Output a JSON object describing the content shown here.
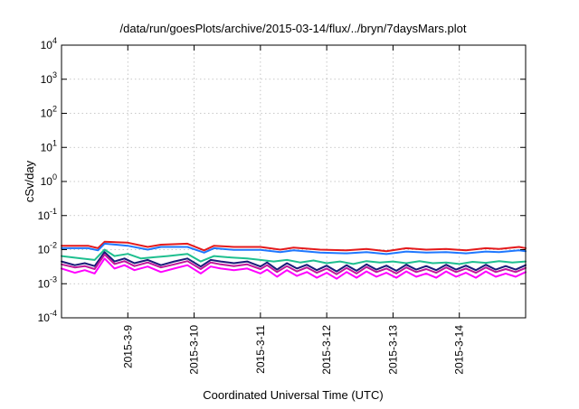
{
  "chart_data": {
    "type": "line",
    "title": "/data/run/goesPlots/archive/2015-03-14/flux/../bryn/7daysMars.plot",
    "xlabel": "Coordinated Universal Time (UTC)",
    "ylabel": "cSv/day",
    "yscale": "log",
    "ylim": [
      0.0001,
      10000
    ],
    "xlim": [
      0,
      7
    ],
    "grid": true,
    "legend": "none",
    "y_ticks": [
      {
        "value": 0.0001,
        "base": "10",
        "exp": "-4"
      },
      {
        "value": 0.001,
        "base": "10",
        "exp": "-3"
      },
      {
        "value": 0.01,
        "base": "10",
        "exp": "-2"
      },
      {
        "value": 0.1,
        "base": "10",
        "exp": "-1"
      },
      {
        "value": 1,
        "base": "10",
        "exp": "0"
      },
      {
        "value": 10,
        "base": "10",
        "exp": "1"
      },
      {
        "value": 100,
        "base": "10",
        "exp": "2"
      },
      {
        "value": 1000,
        "base": "10",
        "exp": "3"
      },
      {
        "value": 10000,
        "base": "10",
        "exp": "4"
      }
    ],
    "x_ticks": [
      {
        "value": 1,
        "label": "2015-3-9"
      },
      {
        "value": 2,
        "label": "2015-3-10"
      },
      {
        "value": 3,
        "label": "2015-3-11"
      },
      {
        "value": 4,
        "label": "2015-3-12"
      },
      {
        "value": 5,
        "label": "2015-3-13"
      },
      {
        "value": 6,
        "label": "2015-3-14"
      }
    ],
    "series": [
      {
        "color": "#e41a1c",
        "x": [
          0,
          0.4,
          0.55,
          0.65,
          1.0,
          1.3,
          1.5,
          1.9,
          2.15,
          2.3,
          2.6,
          3.0,
          3.3,
          3.5,
          3.9,
          4.3,
          4.6,
          4.9,
          5.2,
          5.5,
          5.8,
          6.1,
          6.4,
          6.6,
          6.9,
          7.0
        ],
        "y": [
          0.013,
          0.013,
          0.011,
          0.017,
          0.016,
          0.012,
          0.014,
          0.015,
          0.0095,
          0.013,
          0.012,
          0.012,
          0.01,
          0.0115,
          0.01,
          0.0095,
          0.0105,
          0.009,
          0.011,
          0.01,
          0.0105,
          0.0095,
          0.011,
          0.0105,
          0.012,
          0.011
        ]
      },
      {
        "color": "#1f78ff",
        "x": [
          0,
          0.4,
          0.55,
          0.65,
          1.0,
          1.3,
          1.5,
          1.9,
          2.15,
          2.3,
          2.6,
          3.0,
          3.3,
          3.5,
          3.9,
          4.3,
          4.6,
          4.9,
          5.2,
          5.5,
          5.8,
          6.1,
          6.4,
          6.6,
          6.9,
          7.0
        ],
        "y": [
          0.011,
          0.011,
          0.0095,
          0.015,
          0.013,
          0.01,
          0.012,
          0.012,
          0.0082,
          0.011,
          0.0098,
          0.0098,
          0.0085,
          0.0095,
          0.0082,
          0.0078,
          0.0085,
          0.0074,
          0.0088,
          0.0082,
          0.0085,
          0.0078,
          0.0088,
          0.0085,
          0.0095,
          0.009
        ]
      },
      {
        "color": "#1fbf8f",
        "x": [
          0,
          0.3,
          0.5,
          0.65,
          0.8,
          1.0,
          1.2,
          1.4,
          1.6,
          1.9,
          2.1,
          2.3,
          2.5,
          2.8,
          3.0,
          3.2,
          3.4,
          3.6,
          3.8,
          4.0,
          4.2,
          4.4,
          4.6,
          4.8,
          5.0,
          5.2,
          5.4,
          5.6,
          5.8,
          6.0,
          6.2,
          6.4,
          6.6,
          6.8,
          7.0
        ],
        "y": [
          0.0065,
          0.0055,
          0.005,
          0.01,
          0.0065,
          0.0075,
          0.0055,
          0.006,
          0.0065,
          0.0075,
          0.0045,
          0.0065,
          0.006,
          0.0055,
          0.005,
          0.0045,
          0.005,
          0.0042,
          0.0048,
          0.004,
          0.0045,
          0.0038,
          0.0046,
          0.0042,
          0.0045,
          0.004,
          0.0046,
          0.004,
          0.0042,
          0.0038,
          0.0044,
          0.0041,
          0.0046,
          0.0042,
          0.0045
        ]
      },
      {
        "color": "#1a1a7a",
        "x": [
          0,
          0.2,
          0.35,
          0.5,
          0.65,
          0.8,
          0.95,
          1.1,
          1.3,
          1.5,
          1.7,
          1.9,
          2.1,
          2.25,
          2.4,
          2.6,
          2.8,
          3.0,
          3.1,
          3.25,
          3.4,
          3.55,
          3.7,
          3.85,
          4.0,
          4.15,
          4.3,
          4.45,
          4.6,
          4.75,
          4.9,
          5.05,
          5.2,
          5.35,
          5.5,
          5.65,
          5.8,
          5.95,
          6.1,
          6.25,
          6.4,
          6.55,
          6.7,
          6.85,
          7.0
        ],
        "y": [
          0.0045,
          0.0035,
          0.004,
          0.0033,
          0.0085,
          0.0045,
          0.0055,
          0.004,
          0.005,
          0.0035,
          0.0045,
          0.0055,
          0.0032,
          0.005,
          0.0045,
          0.004,
          0.0045,
          0.0032,
          0.0042,
          0.0026,
          0.004,
          0.0028,
          0.0036,
          0.0025,
          0.0034,
          0.0023,
          0.0035,
          0.0024,
          0.0037,
          0.0026,
          0.0034,
          0.0024,
          0.0036,
          0.0026,
          0.0033,
          0.0025,
          0.0036,
          0.0026,
          0.0034,
          0.0025,
          0.0036,
          0.0026,
          0.0033,
          0.0026,
          0.0035
        ]
      },
      {
        "color": "#c0189a",
        "x": [
          0,
          0.2,
          0.35,
          0.5,
          0.65,
          0.8,
          0.95,
          1.1,
          1.3,
          1.5,
          1.7,
          1.9,
          2.1,
          2.25,
          2.4,
          2.6,
          2.8,
          3.0,
          3.1,
          3.25,
          3.4,
          3.55,
          3.7,
          3.85,
          4.0,
          4.15,
          4.3,
          4.45,
          4.6,
          4.75,
          4.9,
          5.05,
          5.2,
          5.35,
          5.5,
          5.65,
          5.8,
          5.95,
          6.1,
          6.25,
          6.4,
          6.55,
          6.7,
          6.85,
          7.0
        ],
        "y": [
          0.0037,
          0.003,
          0.0033,
          0.0027,
          0.0072,
          0.0038,
          0.0046,
          0.0033,
          0.0042,
          0.003,
          0.0037,
          0.0046,
          0.0027,
          0.0042,
          0.0037,
          0.0033,
          0.0037,
          0.0027,
          0.0035,
          0.0022,
          0.0033,
          0.0023,
          0.003,
          0.0021,
          0.0028,
          0.0019,
          0.0029,
          0.002,
          0.0031,
          0.0022,
          0.0028,
          0.002,
          0.003,
          0.0022,
          0.0027,
          0.0021,
          0.003,
          0.0022,
          0.0028,
          0.0021,
          0.003,
          0.0022,
          0.0027,
          0.0022,
          0.0029
        ]
      },
      {
        "color": "#ff00ff",
        "x": [
          0,
          0.2,
          0.35,
          0.5,
          0.65,
          0.8,
          0.95,
          1.1,
          1.3,
          1.5,
          1.7,
          1.9,
          2.1,
          2.25,
          2.4,
          2.6,
          2.8,
          3.0,
          3.1,
          3.25,
          3.4,
          3.55,
          3.7,
          3.85,
          4.0,
          4.15,
          4.3,
          4.45,
          4.6,
          4.75,
          4.9,
          5.05,
          5.2,
          5.35,
          5.5,
          5.65,
          5.8,
          5.95,
          6.1,
          6.25,
          6.4,
          6.55,
          6.7,
          6.85,
          7.0
        ],
        "y": [
          0.0028,
          0.0021,
          0.0025,
          0.002,
          0.0055,
          0.0028,
          0.0035,
          0.0025,
          0.0032,
          0.0022,
          0.0028,
          0.0035,
          0.002,
          0.0032,
          0.0028,
          0.0025,
          0.0028,
          0.002,
          0.0026,
          0.0016,
          0.0025,
          0.0017,
          0.0022,
          0.0015,
          0.0021,
          0.0014,
          0.0022,
          0.0015,
          0.0023,
          0.0016,
          0.0021,
          0.0015,
          0.0023,
          0.0016,
          0.002,
          0.0015,
          0.0023,
          0.0016,
          0.0021,
          0.0015,
          0.0023,
          0.0016,
          0.002,
          0.0016,
          0.0022
        ]
      }
    ]
  }
}
